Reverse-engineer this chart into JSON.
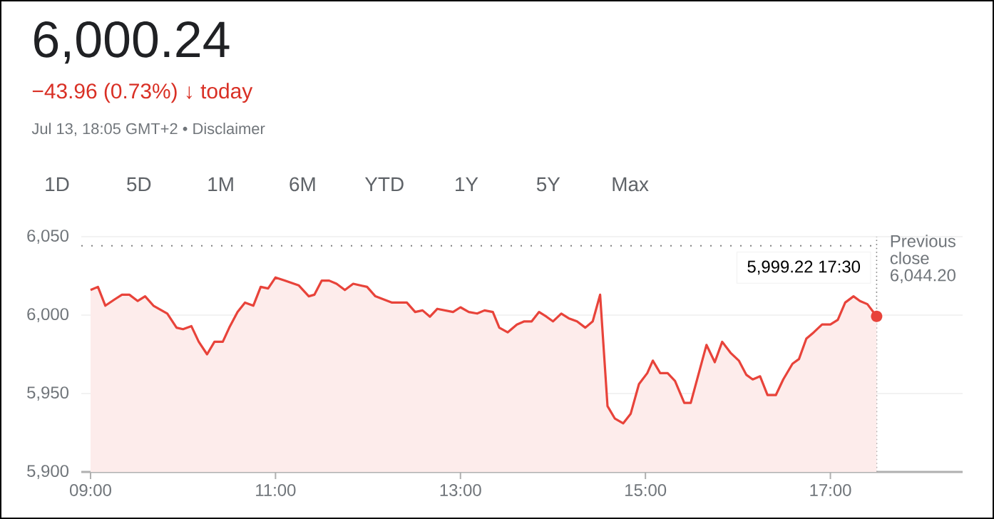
{
  "chart_data": {
    "type": "area",
    "title": "6,000.24",
    "subtitle": "−43.96 (0.73%) ↓ today",
    "annotations": [
      "Jul 13, 18:05 GMT+2 • Disclaimer",
      "1D",
      "5D",
      "1M",
      "6M",
      "YTD",
      "1Y",
      "5Y",
      "Max",
      {
        "text": "5,999.22  17:30",
        "x": 17.5,
        "y": 5999.22
      }
    ],
    "series": [
      {
        "color": "#e8433a",
        "x": [
          9.0,
          9.08,
          9.16,
          9.26,
          9.34,
          9.42,
          9.51,
          9.59,
          9.68,
          9.83,
          9.93,
          10.0,
          10.09,
          10.17,
          10.26,
          10.34,
          10.43,
          10.5,
          10.59,
          10.67,
          10.76,
          10.84,
          10.92,
          11.0,
          11.1,
          11.25,
          11.36,
          11.42,
          11.5,
          11.58,
          11.66,
          11.75,
          11.84,
          11.99,
          12.08,
          12.17,
          12.26,
          12.42,
          12.51,
          12.59,
          12.67,
          12.75,
          12.92,
          13.0,
          13.09,
          13.18,
          13.26,
          13.35,
          13.42,
          13.51,
          13.61,
          13.69,
          13.77,
          13.85,
          13.93,
          14.0,
          14.09,
          14.17,
          14.26,
          14.35,
          14.43,
          14.51,
          14.59,
          14.67,
          14.76,
          14.84,
          14.93,
          15.02,
          15.08,
          15.16,
          15.24,
          15.32,
          15.42,
          15.49,
          15.66,
          15.75,
          15.83,
          15.92,
          16.01,
          16.09,
          16.16,
          16.24,
          16.32,
          16.41,
          16.49,
          16.59,
          16.66,
          16.74,
          16.82,
          16.91,
          17.0,
          17.08,
          17.16,
          17.25,
          17.32,
          17.4,
          17.5
        ],
        "values": [
          6016,
          6018,
          6006,
          6010,
          6013,
          6013,
          6009,
          6012,
          6006,
          6001,
          5992,
          5991,
          5993,
          5983,
          5975,
          5983,
          5983,
          5992,
          6002,
          6008,
          6006,
          6018,
          6017,
          6024,
          6022,
          6019,
          6012,
          6013,
          6022,
          6022,
          6020,
          6016,
          6020,
          6018,
          6012,
          6010,
          6008,
          6008,
          6002,
          6003,
          5999,
          6004,
          6002,
          6005,
          6002,
          6001,
          6003,
          6002,
          5992,
          5989,
          5994,
          5996,
          5996,
          6002,
          5999,
          5996,
          6001,
          5998,
          5996,
          5992,
          5996,
          6013,
          5942,
          5934,
          5931,
          5937,
          5956,
          5963,
          5971,
          5963,
          5963,
          5958,
          5944,
          5944,
          5981,
          5970,
          5983,
          5976,
          5971,
          5962,
          5959,
          5961,
          5949,
          5949,
          5959,
          5969,
          5972,
          5985,
          5989,
          5994,
          5994,
          5997,
          6008,
          6012,
          6009,
          6007,
          5999.22
        ]
      }
    ],
    "xlim": [
      8.9,
      18.43
    ],
    "ylim": [
      5900,
      6050
    ],
    "xticks": [
      {
        "value": 9,
        "label": "09:00"
      },
      {
        "value": 11,
        "label": "11:00"
      },
      {
        "value": 13,
        "label": "13:00"
      },
      {
        "value": 15,
        "label": "15:00"
      },
      {
        "value": 17,
        "label": "17:00"
      }
    ],
    "yticks": [
      {
        "value": 5900,
        "label": "5,900"
      },
      {
        "value": 5950,
        "label": "5,950"
      },
      {
        "value": 6000,
        "label": "6,000"
      },
      {
        "value": 6050,
        "label": "6,050"
      }
    ],
    "grid": "y",
    "ref_lines": [
      {
        "axis": "y",
        "value": 6044.2,
        "label": "Previous close 6,044.20",
        "color": "#808080",
        "line_style": "dotted"
      },
      {
        "axis": "x",
        "value": 17.5,
        "color": "#808080",
        "line_style": "dotted"
      }
    ]
  }
}
